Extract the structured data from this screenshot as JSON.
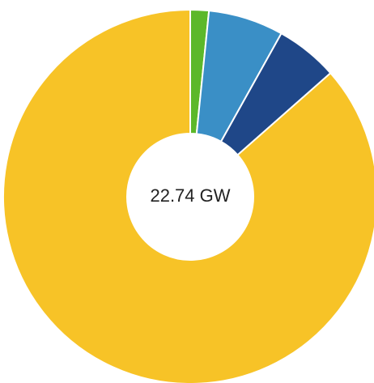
{
  "chart_data": {
    "type": "donut",
    "center_label": "22.74 GW",
    "values": [
      1.6,
      6.5,
      5.4,
      86.5
    ],
    "colors": [
      "#5cb82a",
      "#3a8fc6",
      "#1f4788",
      "#f7c327"
    ]
  }
}
